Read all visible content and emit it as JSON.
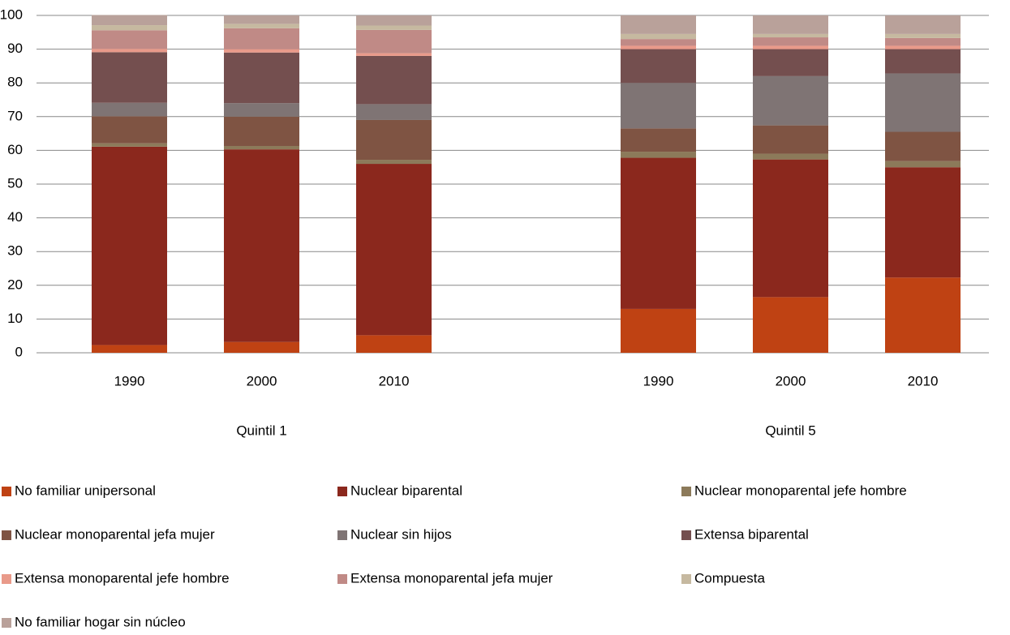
{
  "chart_data": {
    "type": "stacked_bar",
    "categories": [
      "1990",
      "2000",
      "2010",
      null,
      "1990",
      "2000",
      "2010"
    ],
    "group_labels": [
      "Quintil 1",
      "Quintil 5"
    ],
    "series": [
      {
        "name": "No familiar unipersonal",
        "color": "#bf4213",
        "values": [
          2.3,
          3.2,
          5.2,
          null,
          13,
          16.5,
          22.3
        ]
      },
      {
        "name": "Nuclear biparental",
        "color": "#8b281d",
        "values": [
          58.8,
          57.1,
          50.8,
          null,
          44.8,
          40.8,
          32.7
        ]
      },
      {
        "name": "Nuclear monoparental jefe hombre",
        "color": "#8c7a5a",
        "values": [
          1,
          1,
          1.2,
          null,
          1.8,
          1.7,
          1.8
        ]
      },
      {
        "name": "Nuclear monoparental jefa mujer",
        "color": "#7f5443",
        "values": [
          8,
          8.7,
          11.8,
          null,
          6.9,
          8.4,
          8.7
        ]
      },
      {
        "name": "Nuclear sin hijos",
        "color": "#7f7474",
        "values": [
          4,
          4,
          4.7,
          null,
          13.5,
          14.6,
          17.3
        ]
      },
      {
        "name": "Extensa biparental",
        "color": "#744f4f",
        "values": [
          15,
          15,
          14.3,
          null,
          10,
          8,
          7.2
        ]
      },
      {
        "name": "Extensa monoparental jefe hombre",
        "color": "#e99a8a",
        "values": [
          1,
          1,
          0.8,
          null,
          1,
          1,
          1
        ]
      },
      {
        "name": "Extensa monoparental jefa mujer",
        "color": "#c08a86",
        "values": [
          5.5,
          6.2,
          6.9,
          null,
          2,
          2.5,
          2.3
        ]
      },
      {
        "name": "Compuesta",
        "color": "#c6b9a0",
        "values": [
          1.5,
          1.3,
          1.3,
          null,
          1.5,
          1,
          1.2
        ]
      },
      {
        "name": "No familiar hogar sin núcleo",
        "color": "#b9a19a",
        "values": [
          3,
          2.5,
          3,
          null,
          5.5,
          5.5,
          5.5
        ]
      }
    ],
    "ylim": [
      0,
      100
    ],
    "yticks": [
      0,
      10,
      20,
      30,
      40,
      50,
      60,
      70,
      80,
      90,
      100
    ],
    "grid": true,
    "legend": "bottom"
  }
}
